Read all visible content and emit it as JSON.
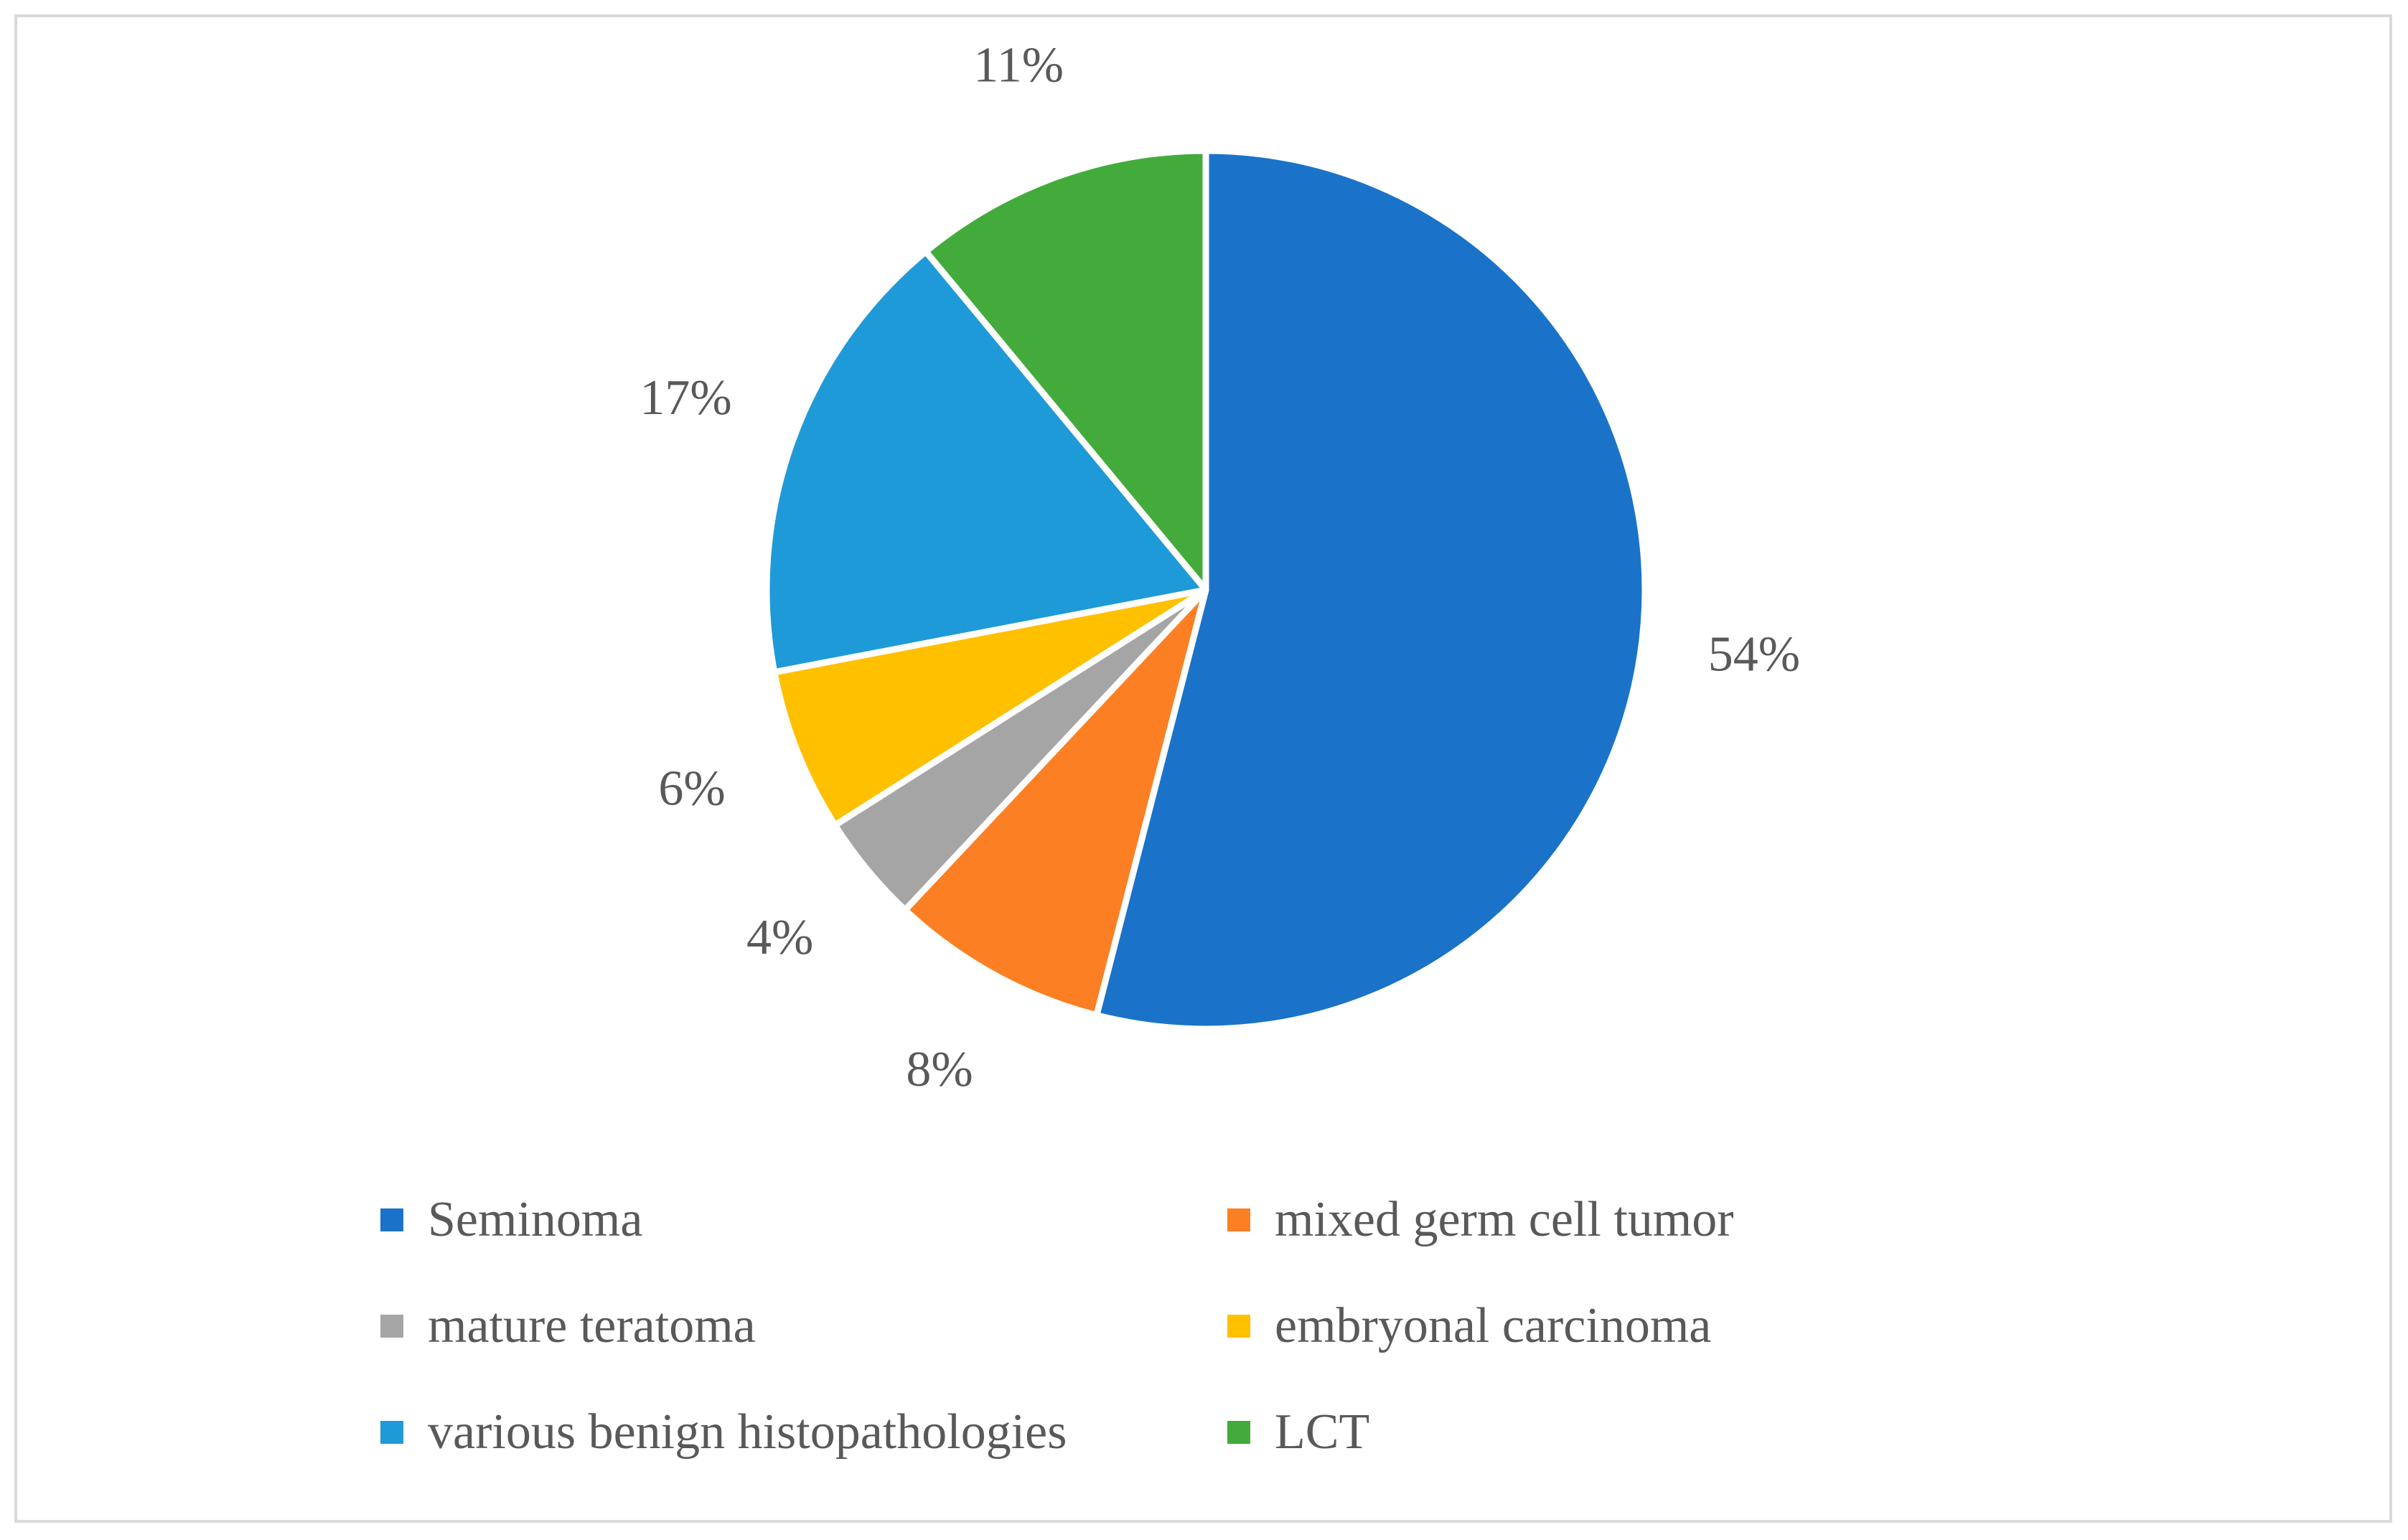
{
  "chart_data": {
    "type": "pie",
    "title": "",
    "slices": [
      {
        "label": "Seminoma",
        "value": 54,
        "value_label": "54%",
        "color": "#1a73c8"
      },
      {
        "label": "mixed germ cell tumor",
        "value": 8,
        "value_label": "8%",
        "color": "#fd7f24"
      },
      {
        "label": "mature teratoma",
        "value": 4,
        "value_label": "4%",
        "color": "#a5a5a5"
      },
      {
        "label": "embryonal carcinoma",
        "value": 6,
        "value_label": "6%",
        "color": "#ffc000"
      },
      {
        "label": "various benign histopathologies",
        "value": 17,
        "value_label": "17%",
        "color": "#1f9ad8"
      },
      {
        "label": "LCT",
        "value": 11,
        "value_label": "11%",
        "color": "#43ab3b"
      }
    ],
    "start_angle": "12 o'clock",
    "direction": "clockwise",
    "legend_position": "bottom",
    "legend_columns": 2
  }
}
